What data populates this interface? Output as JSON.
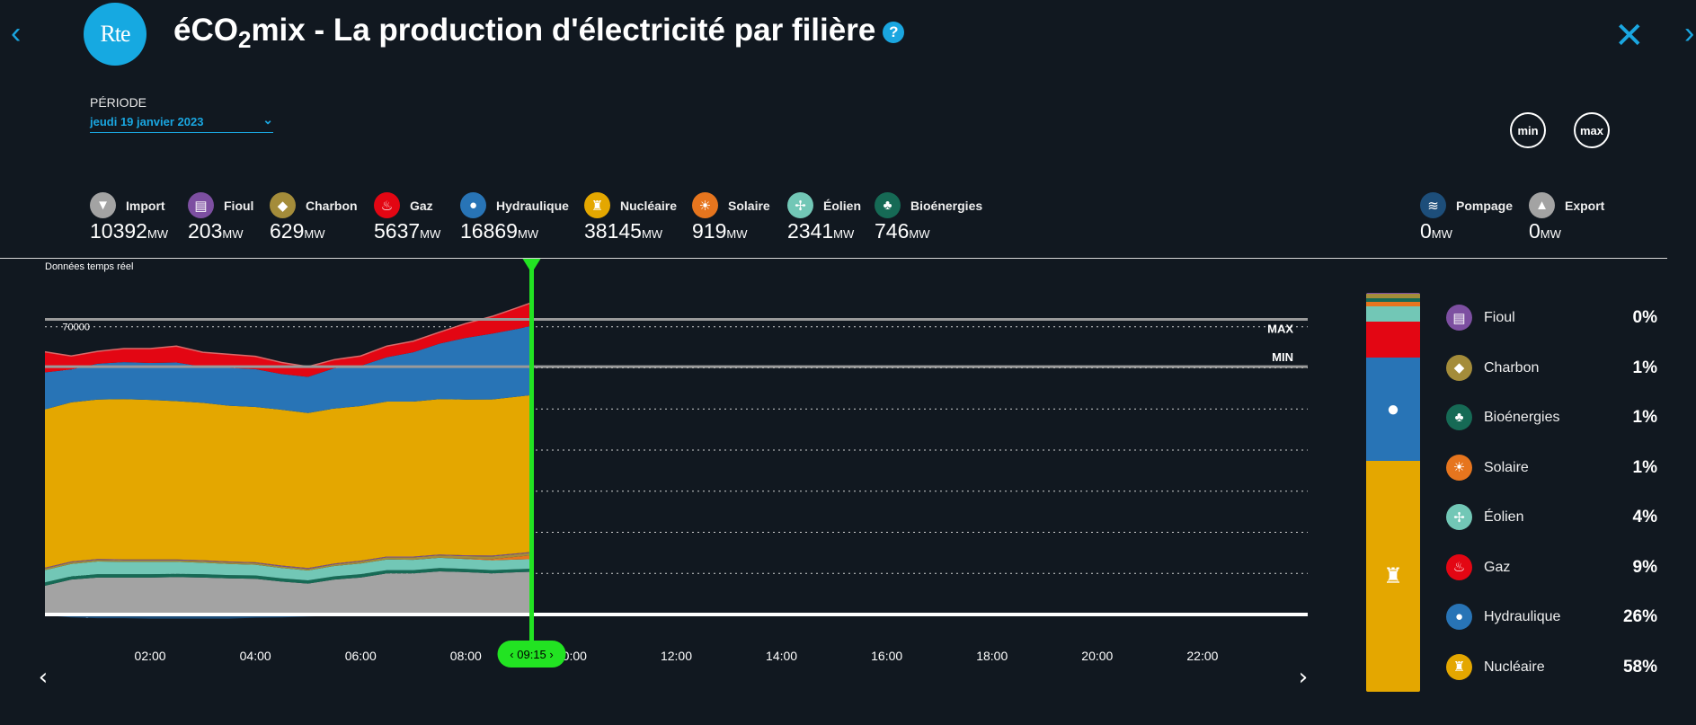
{
  "header": {
    "title_prefix": "éCO",
    "title_sub": "2",
    "title_suffix": "mix - La production d'électricité par filière",
    "logo_text": "Rte",
    "help_label": "?",
    "close_label": "✕",
    "back_label": "‹",
    "forward_label": "›"
  },
  "period": {
    "label": "PÉRIODE",
    "value": "jeudi 19 janvier 2023",
    "chevron": "⌄"
  },
  "buttons": {
    "min": "min",
    "max": "max"
  },
  "unit": "MW",
  "sources": [
    {
      "name": "Import",
      "value": "10392",
      "color": "#a3a3a3",
      "icon": "arrow-down-icon"
    },
    {
      "name": "Fioul",
      "value": "203",
      "color": "#7d4fa1",
      "icon": "barrel-icon"
    },
    {
      "name": "Charbon",
      "value": "629",
      "color": "#a48c3a",
      "icon": "coal-icon"
    },
    {
      "name": "Gaz",
      "value": "5637",
      "color": "#e30613",
      "icon": "flame-icon"
    },
    {
      "name": "Hydraulique",
      "value": "16869",
      "color": "#2874b6",
      "icon": "water-drop-icon"
    },
    {
      "name": "Nucléaire",
      "value": "38145",
      "color": "#e4a700",
      "icon": "nuclear-icon"
    },
    {
      "name": "Solaire",
      "value": "919",
      "color": "#e6751e",
      "icon": "sun-icon"
    },
    {
      "name": "Éolien",
      "value": "2341",
      "color": "#72c7b6",
      "icon": "wind-turbine-icon"
    },
    {
      "name": "Bioénergies",
      "value": "746",
      "color": "#166a55",
      "icon": "sprout-icon"
    }
  ],
  "sources_right": [
    {
      "name": "Pompage",
      "value": "0",
      "color": "#1d4e7a",
      "icon": "waves-icon"
    },
    {
      "name": "Export",
      "value": "0",
      "color": "#a3a3a3",
      "icon": "arrow-up-icon"
    }
  ],
  "chart_data": {
    "type": "area",
    "label": "Données temps réel",
    "x": [
      "00:00",
      "00:30",
      "01:00",
      "01:30",
      "02:00",
      "02:30",
      "03:00",
      "03:30",
      "04:00",
      "04:30",
      "05:00",
      "05:30",
      "06:00",
      "06:30",
      "07:00",
      "07:30",
      "08:00",
      "08:30",
      "09:00",
      "09:15"
    ],
    "x_ticks": [
      "02:00",
      "04:00",
      "06:00",
      "08:00",
      "10:00",
      "12:00",
      "14:00",
      "16:00",
      "18:00",
      "20:00",
      "22:00"
    ],
    "x_range": [
      "00:00",
      "24:00"
    ],
    "y_ticks": [
      0,
      10000,
      20000,
      30000,
      40000,
      50000,
      60000,
      70000
    ],
    "ylim": [
      0,
      73000
    ],
    "grid": true,
    "cursor_time": "09:15",
    "max_line": 71800,
    "max_label": "MAX",
    "min_line": 60300,
    "min_label": "MIN",
    "series": [
      {
        "name": "Import",
        "color": "#a3a3a3",
        "values": [
          7000,
          8500,
          9000,
          9000,
          9000,
          9100,
          9000,
          8800,
          8700,
          8000,
          7500,
          8500,
          9000,
          10000,
          10000,
          10500,
          10300,
          10000,
          10300,
          10392
        ]
      },
      {
        "name": "Bioénergies",
        "color": "#166a55",
        "values": [
          800,
          800,
          800,
          800,
          800,
          800,
          800,
          800,
          800,
          800,
          800,
          800,
          800,
          800,
          800,
          800,
          800,
          800,
          750,
          746
        ]
      },
      {
        "name": "Éolien",
        "color": "#72c7b6",
        "values": [
          3000,
          3000,
          3100,
          3000,
          3000,
          2900,
          2800,
          2700,
          2600,
          2500,
          2400,
          2500,
          2600,
          2600,
          2500,
          2500,
          2400,
          2400,
          2350,
          2341
        ]
      },
      {
        "name": "Solaire",
        "color": "#e6751e",
        "values": [
          0,
          0,
          0,
          0,
          0,
          0,
          0,
          0,
          0,
          0,
          0,
          0,
          0,
          0,
          0,
          0,
          100,
          300,
          700,
          919
        ]
      },
      {
        "name": "Charbon",
        "color": "#a48c3a",
        "values": [
          400,
          400,
          400,
          400,
          400,
          400,
          400,
          400,
          400,
          400,
          400,
          400,
          500,
          500,
          600,
          600,
          600,
          630,
          630,
          629
        ]
      },
      {
        "name": "Fioul",
        "color": "#7d4fa1",
        "values": [
          200,
          200,
          200,
          200,
          200,
          200,
          200,
          200,
          200,
          200,
          200,
          200,
          200,
          200,
          200,
          200,
          200,
          200,
          200,
          203
        ]
      },
      {
        "name": "Nucléaire",
        "color": "#e4a700",
        "values": [
          38500,
          38700,
          38800,
          39000,
          38800,
          38500,
          38300,
          37900,
          37800,
          37900,
          37700,
          37700,
          37600,
          37700,
          37700,
          37800,
          37900,
          38000,
          38100,
          38145
        ]
      },
      {
        "name": "Hydraulique",
        "color": "#2874b6",
        "values": [
          9000,
          8000,
          8700,
          9000,
          9000,
          9400,
          8800,
          9200,
          9200,
          8700,
          8800,
          9800,
          9800,
          10800,
          12000,
          13500,
          15000,
          16000,
          16500,
          16869
        ]
      },
      {
        "name": "Gaz",
        "color": "#e30613",
        "values": [
          5000,
          3300,
          3000,
          3300,
          3500,
          4000,
          3500,
          3300,
          3100,
          2800,
          2500,
          2100,
          2400,
          2700,
          2700,
          2800,
          3500,
          4200,
          5200,
          5637
        ]
      },
      {
        "name": "Pompage",
        "color": "#1d4e7a",
        "values": [
          -200,
          -700,
          -900,
          -900,
          -1000,
          -1000,
          -1000,
          -1000,
          -800,
          -700,
          -500,
          -300,
          -200,
          -100,
          0,
          0,
          0,
          0,
          0,
          0
        ]
      }
    ]
  },
  "mix": {
    "bar_order": [
      "Nucléaire",
      "Hydraulique",
      "Gaz",
      "Éolien",
      "Solaire",
      "Bioénergies",
      "Charbon",
      "Fioul"
    ],
    "bar_values": [
      58,
      26,
      9,
      4,
      1,
      1,
      1,
      0.3
    ],
    "legend": [
      {
        "name": "Fioul",
        "percent": "0%",
        "color": "#7d4fa1",
        "icon": "barrel-icon"
      },
      {
        "name": "Charbon",
        "percent": "1%",
        "color": "#a48c3a",
        "icon": "coal-icon"
      },
      {
        "name": "Bioénergies",
        "percent": "1%",
        "color": "#166a55",
        "icon": "sprout-icon"
      },
      {
        "name": "Solaire",
        "percent": "1%",
        "color": "#e6751e",
        "icon": "sun-icon"
      },
      {
        "name": "Éolien",
        "percent": "4%",
        "color": "#72c7b6",
        "icon": "wind-turbine-icon"
      },
      {
        "name": "Gaz",
        "percent": "9%",
        "color": "#e30613",
        "icon": "flame-icon"
      },
      {
        "name": "Hydraulique",
        "percent": "26%",
        "color": "#2874b6",
        "icon": "water-drop-icon"
      },
      {
        "name": "Nucléaire",
        "percent": "58%",
        "color": "#e4a700",
        "icon": "nuclear-icon"
      }
    ]
  }
}
